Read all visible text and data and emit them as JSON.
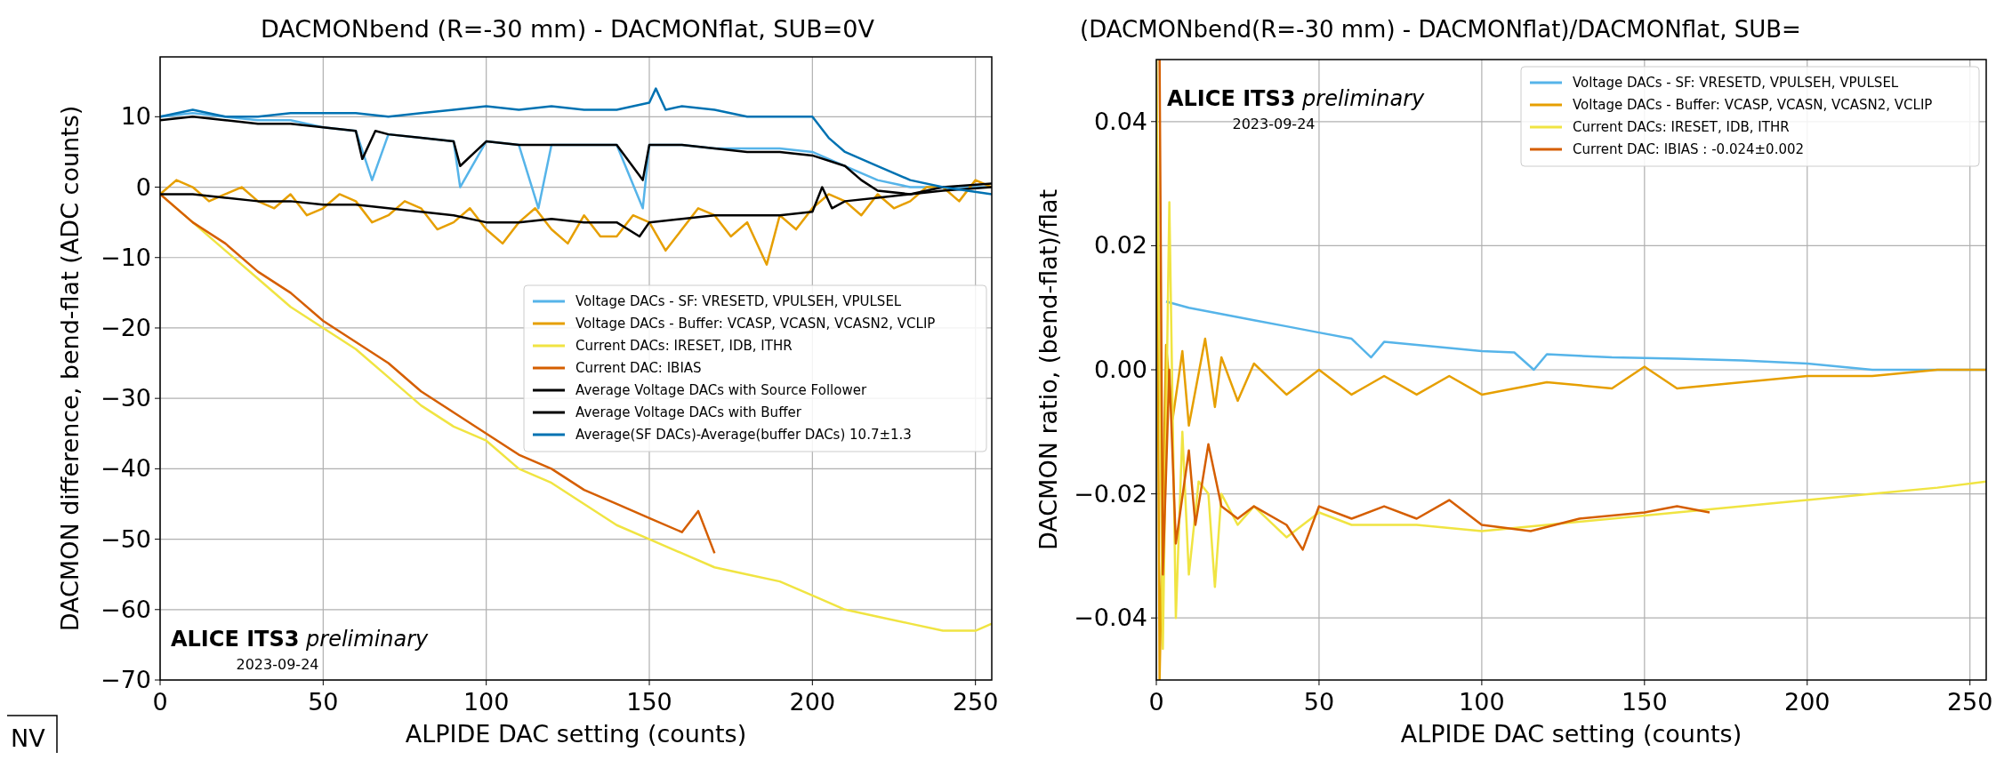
{
  "chart_data": [
    {
      "type": "line",
      "title": "DACMONbend (R=-30 mm) - DACMONflat, SUB=0V",
      "xlabel": "ALPIDE DAC setting (counts)",
      "ylabel": "DACMON difference, bend-flat (ADC counts)",
      "xlim": [
        0,
        255
      ],
      "ylim": [
        -70,
        18.5
      ],
      "xticks": [
        0,
        50,
        100,
        150,
        200,
        250
      ],
      "yticks": [
        {
          "value": -70,
          "label": "−70"
        },
        {
          "value": -60,
          "label": "−60"
        },
        {
          "value": -50,
          "label": "−50"
        },
        {
          "value": -40,
          "label": "−40"
        },
        {
          "value": -30,
          "label": "−30"
        },
        {
          "value": -20,
          "label": "−20"
        },
        {
          "value": -10,
          "label": "−10"
        },
        0,
        10
      ],
      "grid": true,
      "legend": "right",
      "line_style": "solid",
      "annotations": [
        "ALICE ITS3 preliminary",
        "2023-09-24",
        "NV"
      ],
      "series": [
        {
          "name": "Voltage DACs - SF: VRESETD, VPULSEH, VPULSEL",
          "color": "#56b4e9",
          "x": [
            0,
            10,
            20,
            30,
            40,
            50,
            60,
            65,
            70,
            80,
            90,
            92,
            100,
            110,
            116,
            120,
            130,
            140,
            148,
            150,
            160,
            170,
            180,
            190,
            200,
            210,
            220,
            230,
            240,
            255
          ],
          "values": [
            10,
            10.5,
            10,
            9.5,
            9.5,
            8.5,
            8,
            1,
            7.5,
            7,
            6.5,
            0,
            6.5,
            6,
            -3,
            6,
            6,
            6,
            -3,
            6,
            6,
            5.5,
            5.5,
            5.5,
            5,
            3,
            1,
            0,
            0,
            0
          ]
        },
        {
          "name": "Voltage DACs - Buffer: VCASP, VCASN, VCASN2, VCLIP",
          "color": "#e69f00",
          "x": [
            0,
            5,
            10,
            15,
            20,
            25,
            30,
            35,
            40,
            45,
            50,
            55,
            60,
            65,
            70,
            75,
            80,
            85,
            90,
            95,
            100,
            105,
            110,
            115,
            120,
            125,
            130,
            135,
            140,
            145,
            150,
            155,
            160,
            165,
            170,
            175,
            180,
            186,
            190,
            195,
            200,
            205,
            210,
            215,
            220,
            225,
            230,
            235,
            240,
            245,
            250,
            255
          ],
          "values": [
            -1,
            1,
            0,
            -2,
            -1,
            0,
            -2,
            -3,
            -1,
            -4,
            -3,
            -1,
            -2,
            -5,
            -4,
            -2,
            -3,
            -6,
            -5,
            -3,
            -6,
            -8,
            -5,
            -3,
            -6,
            -8,
            -4,
            -7,
            -7,
            -4,
            -5,
            -9,
            -6,
            -3,
            -4,
            -7,
            -5,
            -11,
            -4,
            -6,
            -3,
            -1,
            -2,
            -4,
            -1,
            -3,
            -2,
            0,
            0,
            -2,
            1,
            0
          ]
        },
        {
          "name": "Current DACs: IRESET, IDB, ITHR",
          "color": "#f0e442",
          "x": [
            0,
            10,
            20,
            30,
            40,
            50,
            60,
            70,
            80,
            90,
            100,
            110,
            120,
            130,
            140,
            150,
            160,
            170,
            180,
            190,
            200,
            210,
            220,
            230,
            240,
            250,
            255
          ],
          "values": [
            -1,
            -5,
            -9,
            -13,
            -17,
            -20,
            -23,
            -27,
            -31,
            -34,
            -36,
            -40,
            -42,
            -45,
            -48,
            -50,
            -52,
            -54,
            -55,
            -56,
            -58,
            -60,
            -61,
            -62,
            -63,
            -63,
            -62
          ]
        },
        {
          "name": "Current DAC: IBIAS",
          "color": "#d55e00",
          "x": [
            0,
            10,
            20,
            30,
            40,
            50,
            60,
            70,
            80,
            90,
            100,
            110,
            120,
            130,
            140,
            150,
            160,
            165,
            170
          ],
          "values": [
            -1,
            -5,
            -8,
            -12,
            -15,
            -19,
            -22,
            -25,
            -29,
            -32,
            -35,
            -38,
            -40,
            -43,
            -45,
            -47,
            -49,
            -46,
            -52
          ]
        },
        {
          "name": "Average Voltage DACs with Source Follower",
          "color": "#000000",
          "x": [
            0,
            10,
            20,
            30,
            40,
            50,
            60,
            62,
            66,
            70,
            80,
            90,
            92,
            100,
            110,
            120,
            130,
            140,
            148,
            150,
            160,
            170,
            180,
            190,
            200,
            210,
            215,
            220,
            230,
            240,
            255
          ],
          "values": [
            9.5,
            10,
            9.5,
            9,
            9,
            8.5,
            8,
            4,
            8,
            7.5,
            7,
            6.5,
            3,
            6.5,
            6,
            6,
            6,
            6,
            1,
            6,
            6,
            5.5,
            5,
            5,
            4.5,
            3,
            1,
            -0.5,
            -1,
            0,
            0.5
          ]
        },
        {
          "name": "Average Voltage DACs with Buffer",
          "color": "#000000",
          "x": [
            0,
            10,
            20,
            30,
            40,
            50,
            60,
            70,
            80,
            90,
            100,
            110,
            120,
            130,
            140,
            147,
            150,
            160,
            170,
            180,
            190,
            200,
            203,
            206,
            210,
            220,
            230,
            240,
            255
          ],
          "values": [
            -1,
            -1,
            -1.5,
            -2,
            -2,
            -2.5,
            -2.5,
            -3,
            -3.5,
            -4,
            -5,
            -5,
            -4.5,
            -5,
            -5,
            -7,
            -5,
            -4.5,
            -4,
            -4,
            -4,
            -3.5,
            0,
            -3,
            -2,
            -1.5,
            -1,
            -0.5,
            0
          ]
        },
        {
          "name": "Average(SF DACs)-Average(buffer DACs) 10.7±1.3",
          "color": "#0072b2",
          "x": [
            0,
            10,
            20,
            30,
            40,
            50,
            60,
            70,
            80,
            90,
            100,
            110,
            120,
            130,
            140,
            150,
            152,
            155,
            160,
            170,
            180,
            190,
            200,
            205,
            210,
            220,
            230,
            240,
            255
          ],
          "values": [
            10,
            11,
            10,
            10,
            10.5,
            10.5,
            10.5,
            10,
            10.5,
            11,
            11.5,
            11,
            11.5,
            11,
            11,
            12,
            14,
            11,
            11.5,
            11,
            10,
            10,
            10,
            7,
            5,
            3,
            1,
            0,
            -1
          ]
        }
      ]
    },
    {
      "type": "line",
      "title": "(DACMONbend(R=-30 mm) - DACMONflat)/DACMONflat, SUB=",
      "xlabel": "ALPIDE DAC setting (counts)",
      "ylabel": "DACMON ratio, (bend-flat)/flat",
      "xlim": [
        0,
        255
      ],
      "ylim": [
        -0.05,
        0.05
      ],
      "xticks": [
        0,
        50,
        100,
        150,
        200,
        250
      ],
      "yticks": [
        {
          "value": -0.04,
          "label": "−0.04"
        },
        {
          "value": -0.02,
          "label": "−0.02"
        },
        {
          "value": 0,
          "label": "0.00"
        },
        {
          "value": 0.02,
          "label": "0.02"
        },
        {
          "value": 0.04,
          "label": "0.04"
        }
      ],
      "grid": true,
      "legend": "top right",
      "line_style": "solid",
      "annotations": [
        "ALICE ITS3 preliminary",
        "2023-09-24"
      ],
      "series": [
        {
          "name": "Voltage DACs - SF: VRESETD, VPULSEH, VPULSEL",
          "color": "#56b4e9",
          "x": [
            3,
            10,
            20,
            30,
            40,
            50,
            60,
            66,
            70,
            80,
            90,
            100,
            110,
            116,
            120,
            140,
            160,
            180,
            200,
            220,
            240,
            255
          ],
          "values": [
            0.011,
            0.01,
            0.009,
            0.008,
            0.007,
            0.006,
            0.005,
            0.002,
            0.0045,
            0.004,
            0.0035,
            0.003,
            0.0028,
            0,
            0.0025,
            0.002,
            0.0018,
            0.0015,
            0.001,
            0,
            0,
            0
          ]
        },
        {
          "name": "Voltage DACs - Buffer: VCASP, VCASN, VCASN2, VCLIP",
          "color": "#e69f00",
          "x": [
            0,
            1,
            3,
            5,
            8,
            10,
            15,
            18,
            20,
            25,
            30,
            40,
            50,
            60,
            70,
            80,
            90,
            100,
            120,
            140,
            150,
            160,
            180,
            200,
            220,
            240,
            255
          ],
          "values": [
            0.05,
            -0.05,
            0.004,
            -0.008,
            0.003,
            -0.009,
            0.005,
            -0.006,
            0.002,
            -0.005,
            0.001,
            -0.004,
            0,
            -0.004,
            -0.001,
            -0.004,
            -0.001,
            -0.004,
            -0.002,
            -0.003,
            0.0005,
            -0.003,
            -0.002,
            -0.001,
            -0.001,
            0,
            0
          ]
        },
        {
          "name": "Current DACs: IRESET, IDB, ITHR",
          "color": "#f0e442",
          "x": [
            0,
            2,
            4,
            6,
            8,
            10,
            13,
            16,
            18,
            20,
            25,
            30,
            40,
            50,
            60,
            80,
            100,
            120,
            140,
            160,
            180,
            200,
            220,
            240,
            255
          ],
          "values": [
            0.05,
            -0.045,
            0.027,
            -0.04,
            -0.01,
            -0.033,
            -0.018,
            -0.02,
            -0.035,
            -0.02,
            -0.025,
            -0.022,
            -0.027,
            -0.023,
            -0.025,
            -0.025,
            -0.026,
            -0.025,
            -0.024,
            -0.023,
            -0.022,
            -0.021,
            -0.02,
            -0.019,
            -0.018
          ]
        },
        {
          "name": "Current DAC: IBIAS : -0.024±0.002",
          "color": "#d55e00",
          "x": [
            1,
            2,
            4,
            6,
            10,
            12,
            16,
            20,
            25,
            30,
            40,
            45,
            50,
            60,
            70,
            80,
            90,
            100,
            115,
            130,
            150,
            160,
            170
          ],
          "values": [
            0.05,
            -0.033,
            0,
            -0.028,
            -0.013,
            -0.025,
            -0.012,
            -0.022,
            -0.024,
            -0.022,
            -0.025,
            -0.029,
            -0.022,
            -0.024,
            -0.022,
            -0.024,
            -0.021,
            -0.025,
            -0.026,
            -0.024,
            -0.023,
            -0.022,
            -0.023
          ]
        }
      ]
    }
  ]
}
